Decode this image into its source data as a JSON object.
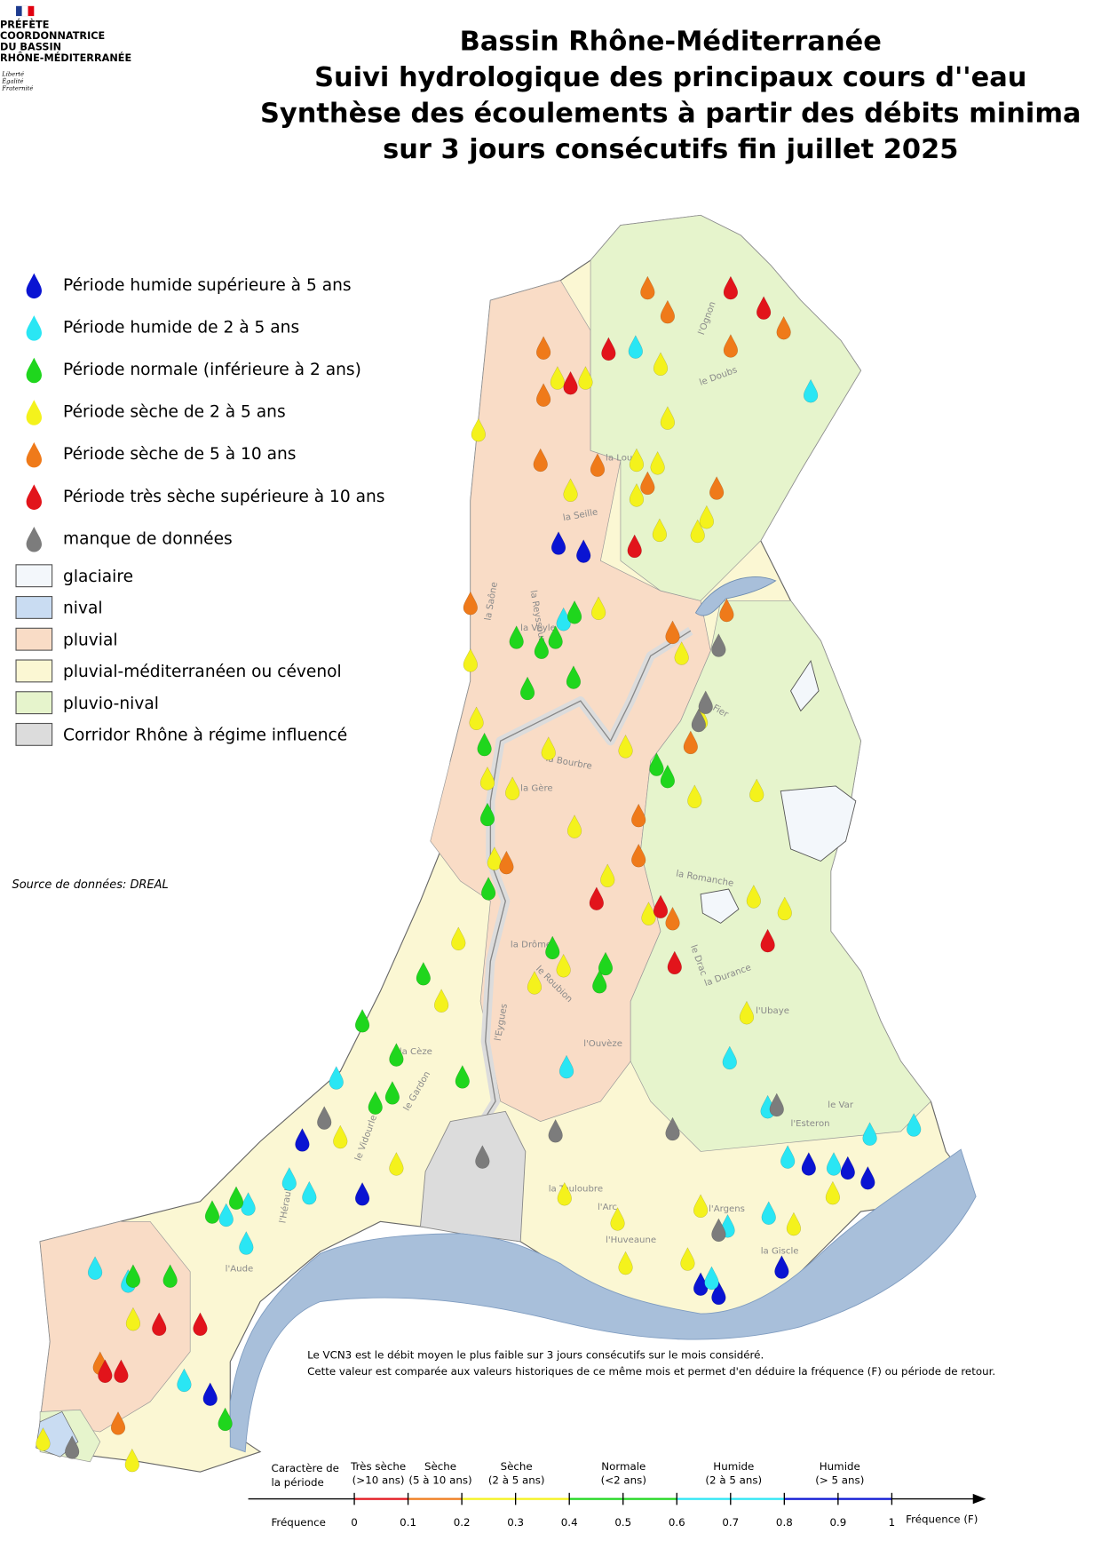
{
  "header": {
    "logo_lines": [
      "PRÉFÈTE",
      "COORDONNATRICE",
      "DU BASSIN",
      "RHÔNE-MÉDITERRANÉE"
    ],
    "motto": [
      "Liberté",
      "Égalité",
      "Fraternité"
    ],
    "title_lines": [
      "Bassin Rhône-Méditerranée",
      "Suivi hydrologique des principaux cours d''eau",
      "Synthèse des écoulements à partir des débits minima",
      "sur 3 jours consécutifs fin juillet 2025"
    ]
  },
  "legend": {
    "stations": [
      {
        "label": "Période humide supérieure à 5 ans",
        "color": "#0a14d2"
      },
      {
        "label": "Période humide de 2 à 5 ans",
        "color": "#2ae6f4"
      },
      {
        "label": "Période normale (inférieure à 2 ans)",
        "color": "#1fd61d"
      },
      {
        "label": "Période sèche de 2 à 5 ans",
        "color": "#f4f21c"
      },
      {
        "label": "Période sèche de 5 à 10 ans",
        "color": "#ef7a1a"
      },
      {
        "label": "Période très sèche supérieure à 10 ans",
        "color": "#e2141b"
      },
      {
        "label": "manque de données",
        "color": "#7c7c7c"
      }
    ],
    "regimes": [
      {
        "label": "glaciaire",
        "color": "#f3f7fb"
      },
      {
        "label": "nival",
        "color": "#c9dcf2"
      },
      {
        "label": "pluvial",
        "color": "#f9dcc6"
      },
      {
        "label": "pluvial-méditerranéen ou cévenol",
        "color": "#fbf7d3"
      },
      {
        "label": "pluvio-nival",
        "color": "#e6f4cc"
      },
      {
        "label": "Corridor Rhône à régime influencé",
        "color": "#dcdcdc"
      }
    ]
  },
  "source": "Source de données: DREAL",
  "note": [
    "Le VCN3 est le débit moyen le plus faible sur 3 jours consécutifs sur le mois considéré.",
    "Cette valeur est comparée aux valeurs historiques de ce même mois et permet d'en déduire la fréquence (F) ou période de retour."
  ],
  "rivers": [
    "l'Ognon",
    "le Doubs",
    "la Loue",
    "la Saône",
    "la Seille",
    "la Veyle",
    "la Reyssouze",
    "la Bourbre",
    "la Gère",
    "la Drôme",
    "le Roubion",
    "l'Eygues",
    "l'Ouvèze",
    "la Durance",
    "l'Ubaye",
    "le Drac",
    "la Romanche",
    "l'Arc",
    "le Fier",
    "l'Argens",
    "la Cèze",
    "le Gardon",
    "le Vidourle",
    "l'Hérault",
    "l'Aude",
    "le Var",
    "l'Esteron",
    "la Touloubre",
    "l'Huveaune",
    "la Giscle"
  ],
  "scale": {
    "start": [
      "Caractère de",
      "la période"
    ],
    "classes": [
      [
        "Très sèche",
        "(>10 ans)"
      ],
      [
        "Sèche",
        "(5 à 10 ans)"
      ],
      [
        "Sèche",
        "(2 à 5 ans)"
      ],
      [
        "Normale",
        "(<2 ans)"
      ],
      [
        "Humide",
        "(2 à 5 ans)"
      ],
      [
        "Humide",
        "(> 5 ans)"
      ]
    ],
    "axis_label": "Fréquence",
    "axis_end": "Fréquence (F)",
    "ticks": [
      0,
      0.1,
      0.2,
      0.3,
      0.4,
      0.5,
      0.6,
      0.7,
      0.8,
      0.9,
      1
    ],
    "colors": [
      "#e2141b",
      "#ef7a1a",
      "#f4f21c",
      "#1fd61d",
      "#2ae6f4",
      "#0a14d2"
    ]
  }
}
